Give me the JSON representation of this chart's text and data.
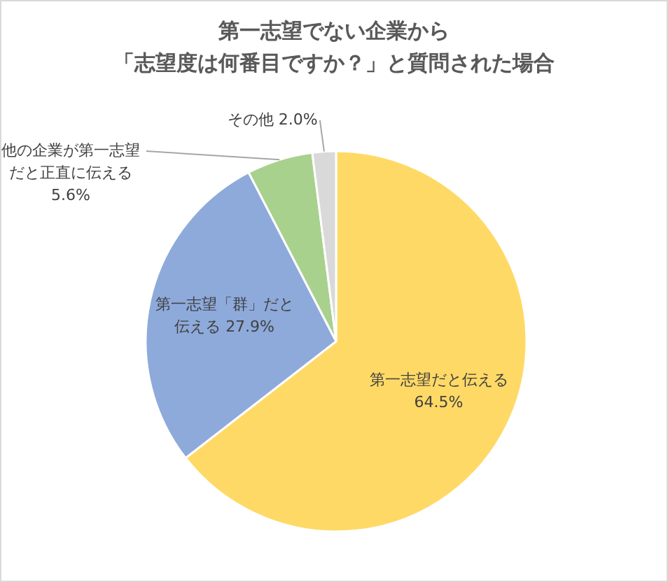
{
  "chart_data": {
    "type": "pie",
    "title": "第一志望でない企業から「志望度は何番目ですか？」と質問された場合",
    "categories": [
      "第一志望だと伝える",
      "第一志望「群」だと伝える",
      "他の企業が第一志望だと正直に伝える",
      "その他"
    ],
    "values": [
      64.5,
      27.9,
      5.6,
      2.0
    ],
    "colors": [
      "#ffd966",
      "#8eaadb",
      "#a9d18e",
      "#d9d9d9"
    ],
    "value_labels": [
      "64.5%",
      "27.9%",
      "5.6%",
      "2.0%"
    ],
    "legend": false
  }
}
